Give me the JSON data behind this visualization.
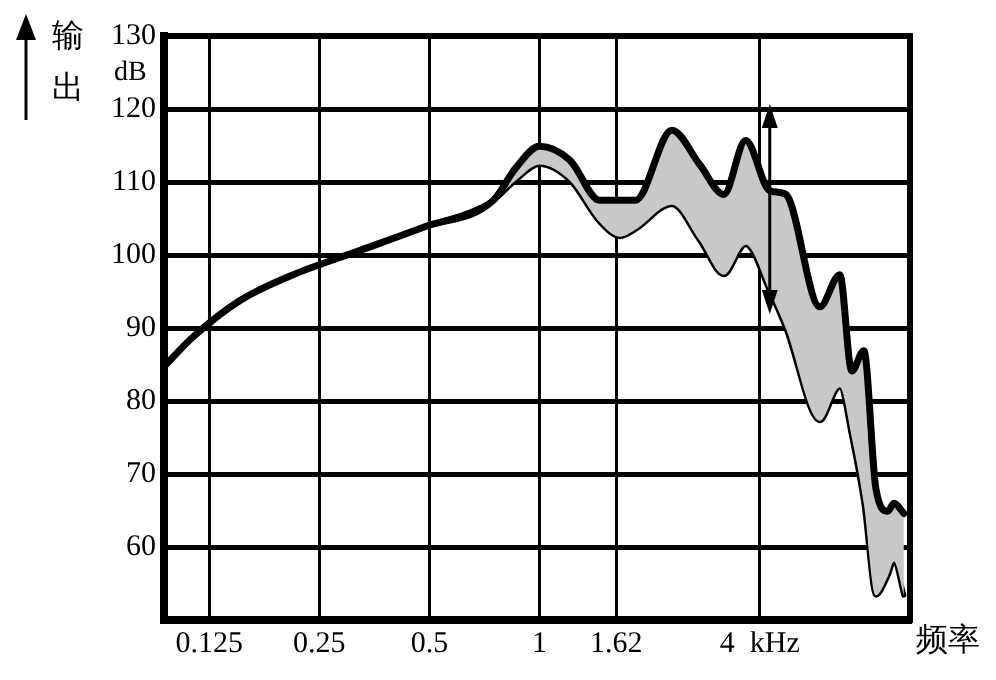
{
  "chart_data": {
    "type": "line",
    "ylabel": "输出",
    "xlabel": "频率",
    "annotations": [
      "dB"
    ],
    "log": "x",
    "grid": true,
    "legend": false,
    "marker": "none",
    "line_style": "solid",
    "xlim": [
      0.094,
      10.3
    ],
    "xticks": [
      0.125,
      0.25,
      0.5,
      1,
      1.62,
      {
        "value": 4,
        "label": "4  kHz"
      }
    ],
    "ylim": [
      50,
      130
    ],
    "yticks": [
      60,
      70,
      80,
      90,
      100,
      110,
      120,
      130
    ],
    "x": [
      0.094,
      0.113,
      0.151,
      0.212,
      0.322,
      0.488,
      0.748,
      0.86,
      1,
      1.21,
      1.46,
      1.66,
      1.83,
      2.3,
      2.74,
      3.19,
      3.66,
      4.26,
      4.71,
      5.84,
      6.62,
      7.14,
      7.7,
      8.31,
      8.96,
      9.31,
      9.91
    ],
    "series": [
      {
        "type": "area",
        "color": "#c8c8c8",
        "values": [
          84.7,
          88.8,
          93.7,
          97.3,
          100.6,
          103.9,
          107.5,
          111.9,
          114.9,
          113,
          107.5,
          107.5,
          107.5,
          117.1,
          112.4,
          108.3,
          115.7,
          108.8,
          108.3,
          92.9,
          97.3,
          84.1,
          86.9,
          68,
          64.9,
          66,
          64.6
        ]
      },
      {
        "type": "line",
        "color": "#000000",
        "values": [
          84.7,
          88.8,
          93.7,
          97.3,
          100.6,
          103.9,
          107.5,
          110.2,
          112.4,
          110.2,
          104.5,
          102.5,
          103.5,
          106.9,
          102,
          97.3,
          101.4,
          95,
          90,
          77.3,
          81.9,
          75,
          66,
          53.4,
          56,
          58,
          53.4
        ]
      }
    ]
  }
}
